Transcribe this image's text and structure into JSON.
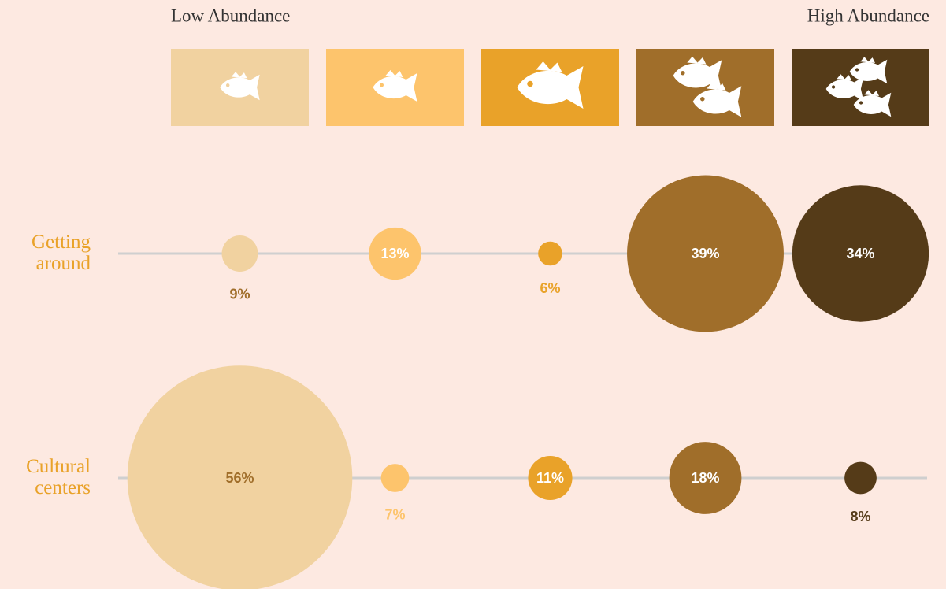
{
  "chart_data": {
    "type": "bubble",
    "legend_low": "Low Abundance",
    "legend_high": "High Abundance",
    "colors": [
      "#f1d2a0",
      "#fdc46c",
      "#e9a229",
      "#a06e2a",
      "#553b18"
    ],
    "series": [
      {
        "name": "Getting around",
        "values": [
          9,
          13,
          6,
          39,
          34
        ],
        "value_labels": [
          "9%",
          "13%",
          "6%",
          "39%",
          "34%"
        ]
      },
      {
        "name": "Cultural centers",
        "values": [
          56,
          7,
          11,
          18,
          8
        ],
        "value_labels": [
          "56%",
          "7%",
          "11%",
          "18%",
          "8%"
        ]
      }
    ]
  }
}
